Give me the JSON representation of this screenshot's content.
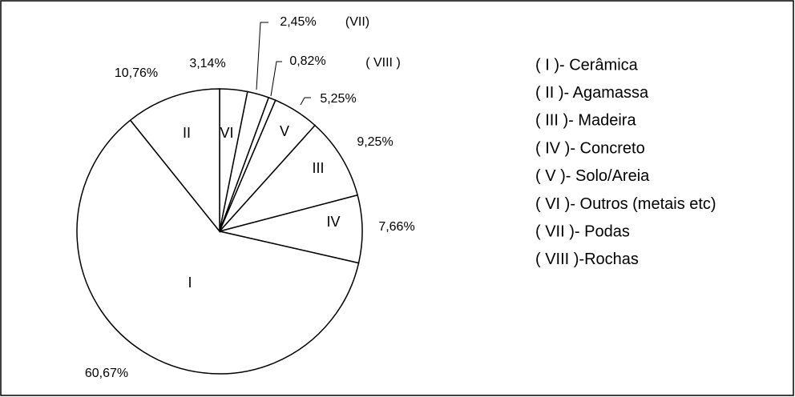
{
  "chart_data": {
    "type": "pie",
    "categories": [
      "VI",
      "(VII)",
      "( VIII )",
      "V",
      "III",
      "IV",
      "I",
      "II"
    ],
    "values": [
      3.14,
      2.45,
      0.82,
      5.25,
      9.25,
      7.66,
      60.67,
      10.76
    ],
    "value_labels": [
      "3,14%",
      "2,45%",
      "0,82%",
      "5,25%",
      "9,25%",
      "7,66%",
      "60,67%",
      "10,76%"
    ],
    "color": "#ffffff",
    "legend": [
      "( I )- Cerâmica",
      "( II )- Agamassa",
      "( III )- Madeira",
      "( IV )- Concreto",
      "( V )- Solo/Areia",
      "( VI )- Outros (metais etc)",
      "( VII )- Podas",
      "( VIII )-Rochas"
    ]
  }
}
